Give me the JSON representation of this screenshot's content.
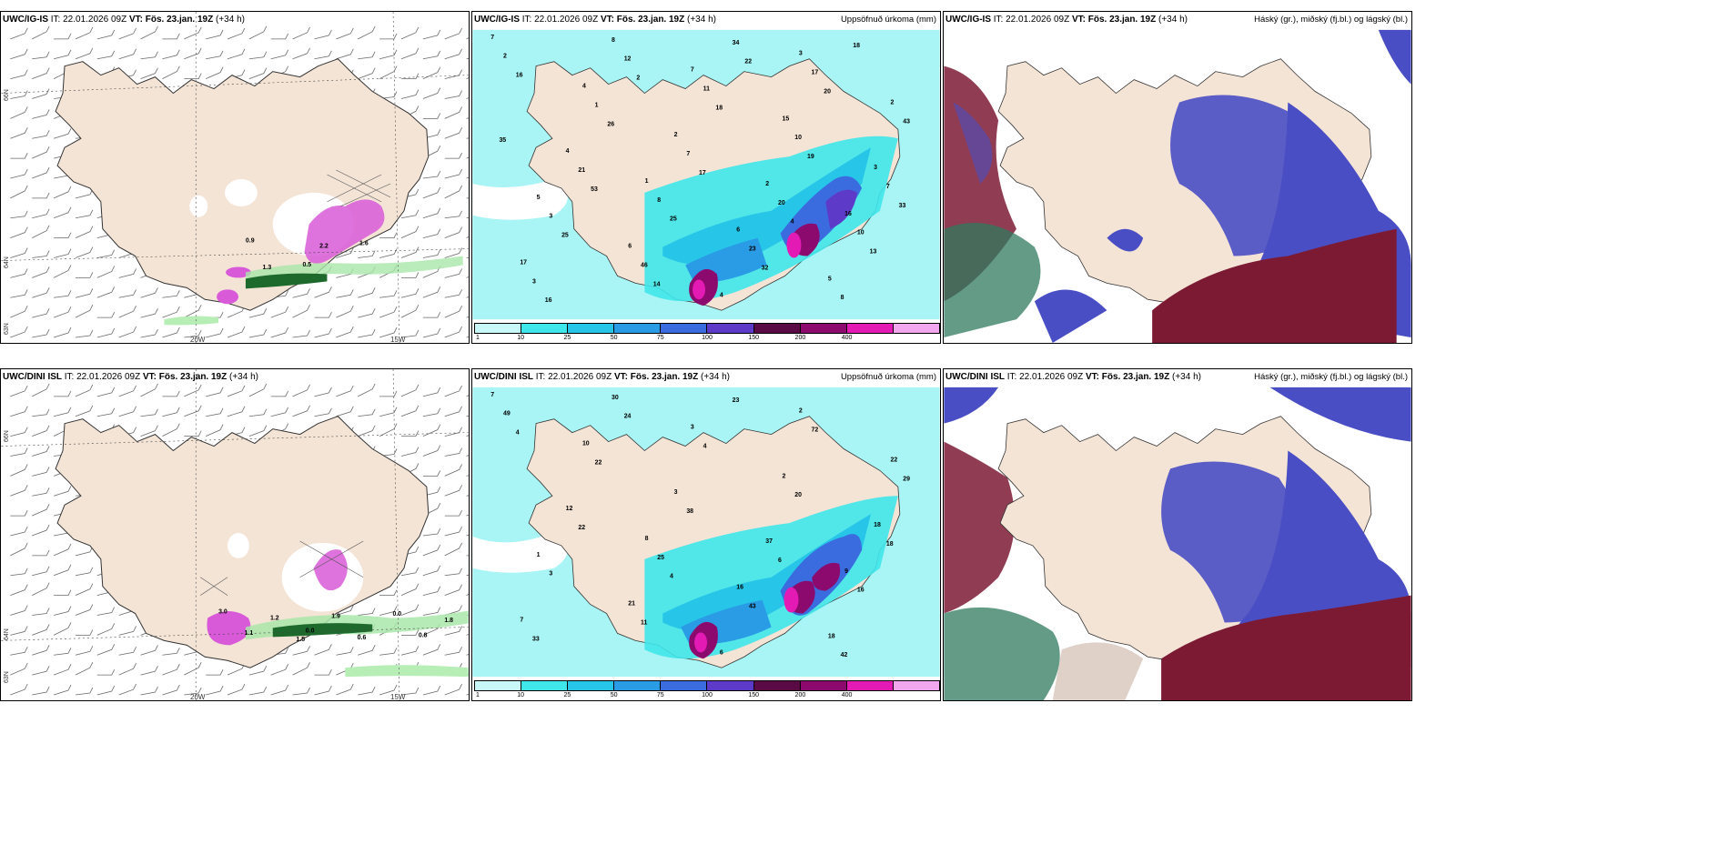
{
  "panels": {
    "p1": {
      "model": "UWC/IG-IS",
      "it_label": "IT:",
      "it": "22.01.2026 09Z",
      "vt_label": "VT:",
      "vt": "Fös. 23.jan. 19Z",
      "lead": "(+34 h)",
      "right": ""
    },
    "p2": {
      "model": "UWC/IG-IS",
      "it_label": "IT:",
      "it": "22.01.2026 09Z",
      "vt_label": "VT:",
      "vt": "Fös. 23.jan. 19Z",
      "lead": "(+34 h)",
      "right": "Uppsöfnuð úrkoma (mm)"
    },
    "p3": {
      "model": "UWC/IG-IS",
      "it_label": "IT:",
      "it": "22.01.2026 09Z",
      "vt_label": "VT:",
      "vt": "Fös. 23.jan. 19Z",
      "lead": "(+34 h)",
      "right": "Háský (gr.), miðský (fj.bl.) og lágský (bl.)"
    },
    "p4": {
      "model": "UWC/DINI ISL",
      "it_label": "IT:",
      "it": "22.01.2026 09Z",
      "vt_label": "VT:",
      "vt": "Fös. 23.jan. 19Z",
      "lead": "(+34 h)",
      "right": ""
    },
    "p5": {
      "model": "UWC/DINI ISL",
      "it_label": "IT:",
      "it": "22.01.2026 09Z",
      "vt_label": "VT:",
      "vt": "Fös. 23.jan. 19Z",
      "lead": "(+34 h)",
      "right": "Uppsöfnuð úrkoma (mm)"
    },
    "p6": {
      "model": "UWC/DINI ISL",
      "it_label": "IT:",
      "it": "22.01.2026 09Z",
      "vt_label": "VT:",
      "vt": "Fös. 23.jan. 19Z",
      "lead": "(+34 h)",
      "right": "Háský (gr.), miðský (fj.bl.) og lágský (bl.)"
    }
  },
  "map_labels": {
    "lon_20w": "20W",
    "lon_15w": "15W",
    "lat_66n": "66N",
    "lat_64n": "64N",
    "lat_63n": "63N"
  },
  "colorbar": {
    "labels": [
      "1",
      "10",
      "25",
      "50",
      "75",
      "100",
      "150",
      "200",
      "400"
    ],
    "colors": [
      "#c8f8f8",
      "#3fe6ea",
      "#27c6e8",
      "#2a9ce6",
      "#3a6ce0",
      "#5d3bc8",
      "#5a0b46",
      "#8c0a6e",
      "#e31ab4",
      "#f2a6ee"
    ]
  },
  "precip_values_top": [
    "7",
    "1",
    "3",
    "5",
    "7",
    "16",
    "4",
    "6",
    "2",
    "6",
    "15",
    "17",
    "2",
    "5",
    "4",
    "4",
    "3",
    "8",
    "2",
    "2",
    "8",
    "17",
    "3",
    "11",
    "10",
    "1",
    "23",
    "43",
    "46",
    "10",
    "3",
    "7",
    "8",
    "21",
    "34",
    "7",
    "12",
    "20",
    "16",
    "25",
    "20",
    "25",
    "18",
    "13",
    "26",
    "32",
    "35",
    "14",
    "19",
    "16",
    "17",
    "18",
    "53",
    "22",
    "33",
    "2",
    "4"
  ],
  "precip_values_bottom": [
    "7",
    "8",
    "2",
    "1",
    "3",
    "9",
    "10",
    "16",
    "22",
    "21",
    "2",
    "7",
    "3",
    "18",
    "12",
    "6",
    "18",
    "30",
    "37",
    "49",
    "25",
    "72",
    "3",
    "4",
    "16",
    "22",
    "43",
    "29",
    "11",
    "20",
    "33",
    "38",
    "42",
    "22",
    "23",
    "18",
    "24",
    "6",
    "4",
    "4"
  ],
  "wind_values_top": [
    "0.9",
    "0.5",
    "1.6",
    "1.3",
    "2.2"
  ],
  "wind_values_bottom": [
    "3.0",
    "0.0",
    "0.0",
    "1.1",
    "1.9",
    "0.8",
    "1.2",
    "0.6",
    "1.8",
    "1.5"
  ],
  "colors": {
    "land": "#f4e4d6",
    "sea_precip": "#a9f4f4",
    "cloud_high": "#2f7a5f",
    "cloud_mid": "#7c1a34",
    "cloud_low": "#4a4ec4"
  }
}
